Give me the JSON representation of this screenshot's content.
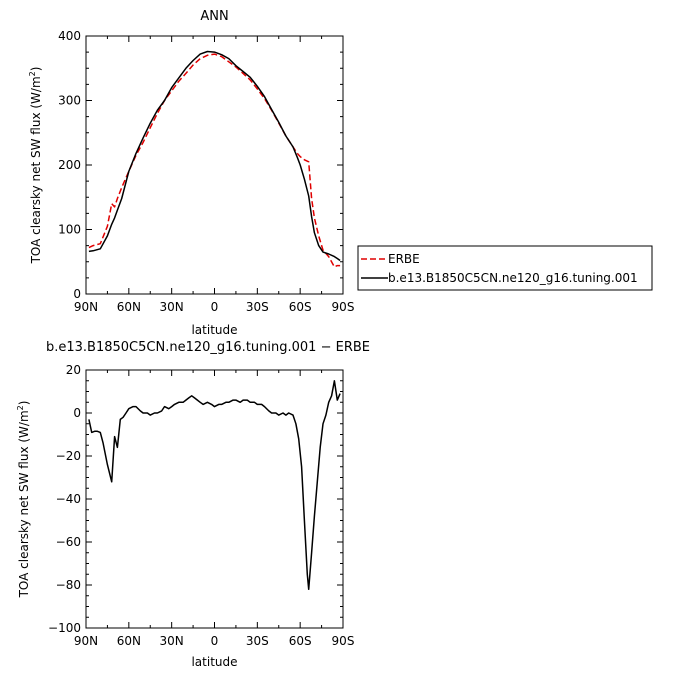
{
  "chart_data": [
    {
      "type": "line",
      "title": "ANN",
      "xlabel": "latitude",
      "ylabel": "TOA clearsky net SW flux (W/m",
      "ylabel_sup": "2",
      "ylabel_close": ")",
      "xlim": [
        90,
        -90
      ],
      "ylim": [
        0,
        400
      ],
      "x_ticks": [
        90,
        60,
        30,
        0,
        -30,
        -60,
        -90
      ],
      "x_tick_labels": [
        "90N",
        "60N",
        "30N",
        "0",
        "30S",
        "60S",
        "90S"
      ],
      "y_ticks": [
        0,
        100,
        200,
        300,
        400
      ],
      "y_tick_labels": [
        "0",
        "100",
        "200",
        "300",
        "400"
      ],
      "grid": false,
      "legend_position": "right",
      "series": [
        {
          "name": "ERBE",
          "color": "#e00000",
          "dash": "dashed",
          "x": [
            88,
            85,
            80,
            75,
            72,
            70,
            68,
            65,
            60,
            55,
            50,
            45,
            40,
            35,
            30,
            25,
            20,
            15,
            10,
            5,
            0,
            -5,
            -10,
            -15,
            -20,
            -25,
            -30,
            -35,
            -40,
            -45,
            -50,
            -55,
            -58,
            -60,
            -63,
            -66,
            -68,
            -70,
            -73,
            -76,
            -80,
            -84,
            -86,
            -88
          ],
          "y": [
            72,
            75,
            78,
            105,
            140,
            135,
            148,
            165,
            190,
            215,
            235,
            258,
            280,
            300,
            315,
            330,
            342,
            355,
            365,
            370,
            372,
            368,
            360,
            352,
            342,
            332,
            318,
            303,
            285,
            265,
            245,
            228,
            218,
            213,
            208,
            205,
            148,
            118,
            90,
            68,
            58,
            42,
            44,
            44
          ]
        },
        {
          "name": "b.e13.B1850C5CN.ne120_g16.tuning.001",
          "color": "#000000",
          "dash": "solid",
          "x": [
            88,
            85,
            80,
            75,
            72,
            70,
            68,
            65,
            60,
            55,
            50,
            45,
            40,
            35,
            30,
            25,
            20,
            15,
            10,
            5,
            0,
            -5,
            -10,
            -15,
            -20,
            -25,
            -30,
            -35,
            -40,
            -45,
            -50,
            -55,
            -58,
            -60,
            -63,
            -66,
            -68,
            -70,
            -73,
            -76,
            -80,
            -84,
            -86,
            -88
          ],
          "y": [
            66,
            67,
            70,
            90,
            108,
            118,
            130,
            148,
            190,
            218,
            242,
            265,
            285,
            300,
            320,
            335,
            350,
            362,
            372,
            376,
            375,
            371,
            365,
            354,
            345,
            336,
            322,
            306,
            286,
            266,
            245,
            228,
            212,
            200,
            178,
            152,
            120,
            95,
            75,
            65,
            62,
            58,
            55,
            52
          ]
        }
      ]
    },
    {
      "type": "line",
      "title": "b.e13.B1850C5CN.ne120_g16.tuning.001 − ERBE",
      "xlabel": "latitude",
      "ylabel": "TOA clearsky net SW flux (W/m",
      "ylabel_sup": "2",
      "ylabel_close": ")",
      "xlim": [
        90,
        -90
      ],
      "ylim": [
        -100,
        20
      ],
      "x_ticks": [
        90,
        60,
        30,
        0,
        -30,
        -60,
        -90
      ],
      "x_tick_labels": [
        "90N",
        "60N",
        "30N",
        "0",
        "30S",
        "60S",
        "90S"
      ],
      "y_ticks": [
        -100,
        -80,
        -60,
        -40,
        -20,
        0,
        20
      ],
      "y_tick_labels": [
        "−100",
        "−80",
        "−60",
        "−40",
        "−20",
        "0",
        "20"
      ],
      "grid": false,
      "series": [
        {
          "name": "",
          "color": "#000000",
          "dash": "solid",
          "x": [
            88,
            86,
            84,
            82,
            80,
            78,
            75,
            72,
            70,
            68,
            66,
            64,
            62,
            60,
            57,
            55,
            52,
            50,
            47,
            45,
            42,
            40,
            37,
            35,
            32,
            30,
            28,
            25,
            22,
            20,
            18,
            16,
            14,
            12,
            10,
            8,
            5,
            2,
            0,
            -3,
            -5,
            -8,
            -10,
            -13,
            -15,
            -18,
            -20,
            -23,
            -25,
            -28,
            -30,
            -33,
            -35,
            -38,
            -40,
            -43,
            -45,
            -48,
            -50,
            -52,
            -55,
            -57,
            -59,
            -61,
            -63,
            -65,
            -66,
            -68,
            -70,
            -72,
            -74,
            -76,
            -78,
            -80,
            -82,
            -84,
            -86,
            -88
          ],
          "y": [
            -3,
            -9,
            -8.5,
            -8.5,
            -9,
            -14,
            -24,
            -32,
            -11,
            -16,
            -3,
            -2,
            0,
            2,
            3,
            3,
            1,
            0,
            0,
            -1,
            0,
            0,
            1,
            3,
            2,
            3,
            4,
            5,
            5,
            6,
            7,
            8,
            7,
            6,
            5,
            4,
            5,
            4,
            3,
            4,
            4,
            5,
            5,
            6,
            6,
            5,
            6,
            6,
            5,
            5,
            4,
            4,
            3,
            1,
            0,
            0,
            -1,
            0,
            -1,
            0,
            -1,
            -5,
            -12,
            -25,
            -50,
            -75,
            -82,
            -65,
            -48,
            -32,
            -16,
            -5,
            -1,
            5,
            8,
            15,
            6,
            9
          ]
        }
      ]
    }
  ]
}
